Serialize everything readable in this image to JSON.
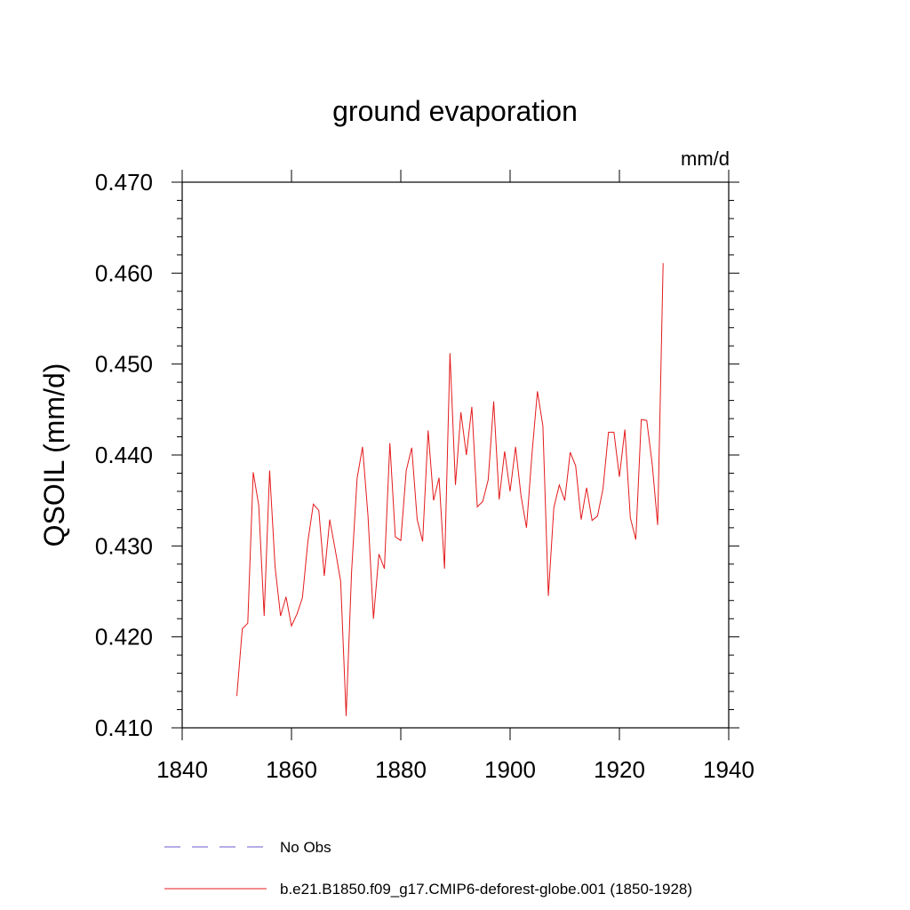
{
  "chart_data": {
    "type": "line",
    "title": "ground evaporation",
    "units_label": "mm/d",
    "ylabel": "QSOIL  (mm/d)",
    "xlabel": "",
    "xlim": [
      1840,
      1940
    ],
    "ylim": [
      0.41,
      0.47
    ],
    "x_ticks": [
      1840,
      1860,
      1880,
      1900,
      1920,
      1940
    ],
    "x_tick_labels": [
      "1840",
      "1860",
      "1880",
      "1900",
      "1920",
      "1940"
    ],
    "y_ticks": [
      0.41,
      0.42,
      0.43,
      0.44,
      0.45,
      0.46,
      0.47
    ],
    "y_tick_labels": [
      "0.410",
      "0.420",
      "0.430",
      "0.440",
      "0.450",
      "0.460",
      "0.470"
    ],
    "legend": [
      {
        "label": "No Obs",
        "color": "#6a5acd",
        "style": "dashed"
      },
      {
        "label": "b.e21.B1850.f09_g17.CMIP6-deforest-globe.001 (1850-1928)",
        "color": "#e41a1c",
        "style": "solid"
      }
    ],
    "series": [
      {
        "name": "b.e21.B1850.f09_g17.CMIP6-deforest-globe.001 (1850-1928)",
        "color": "#e41a1c",
        "x": [
          1850,
          1851,
          1852,
          1853,
          1854,
          1855,
          1856,
          1857,
          1858,
          1859,
          1860,
          1861,
          1862,
          1863,
          1864,
          1865,
          1866,
          1867,
          1868,
          1869,
          1870,
          1871,
          1872,
          1873,
          1874,
          1875,
          1876,
          1877,
          1878,
          1879,
          1880,
          1881,
          1882,
          1883,
          1884,
          1885,
          1886,
          1887,
          1888,
          1889,
          1890,
          1891,
          1892,
          1893,
          1894,
          1895,
          1896,
          1897,
          1898,
          1899,
          1900,
          1901,
          1902,
          1903,
          1904,
          1905,
          1906,
          1907,
          1908,
          1909,
          1910,
          1911,
          1912,
          1913,
          1914,
          1915,
          1916,
          1917,
          1918,
          1919,
          1920,
          1921,
          1922,
          1923,
          1924,
          1925,
          1926,
          1927,
          1928
        ],
        "values": [
          0.4135,
          0.4209,
          0.4215,
          0.4381,
          0.4345,
          0.4223,
          0.4383,
          0.4277,
          0.4223,
          0.4244,
          0.4212,
          0.4225,
          0.4243,
          0.4305,
          0.4346,
          0.4339,
          0.4267,
          0.4329,
          0.4296,
          0.4261,
          0.4113,
          0.4272,
          0.4374,
          0.4409,
          0.4333,
          0.422,
          0.4291,
          0.4275,
          0.4413,
          0.431,
          0.4306,
          0.4383,
          0.4408,
          0.4329,
          0.4305,
          0.4427,
          0.435,
          0.4375,
          0.4275,
          0.4512,
          0.4367,
          0.4447,
          0.44,
          0.4453,
          0.4343,
          0.4349,
          0.4373,
          0.4459,
          0.4351,
          0.4404,
          0.436,
          0.4409,
          0.4355,
          0.432,
          0.4401,
          0.447,
          0.4432,
          0.4245,
          0.4342,
          0.4367,
          0.435,
          0.4403,
          0.4388,
          0.4329,
          0.4364,
          0.4328,
          0.4333,
          0.4363,
          0.4425,
          0.4425,
          0.4376,
          0.4428,
          0.4331,
          0.4307,
          0.4439,
          0.4438,
          0.439,
          0.4323,
          0.4611
        ]
      }
    ]
  }
}
